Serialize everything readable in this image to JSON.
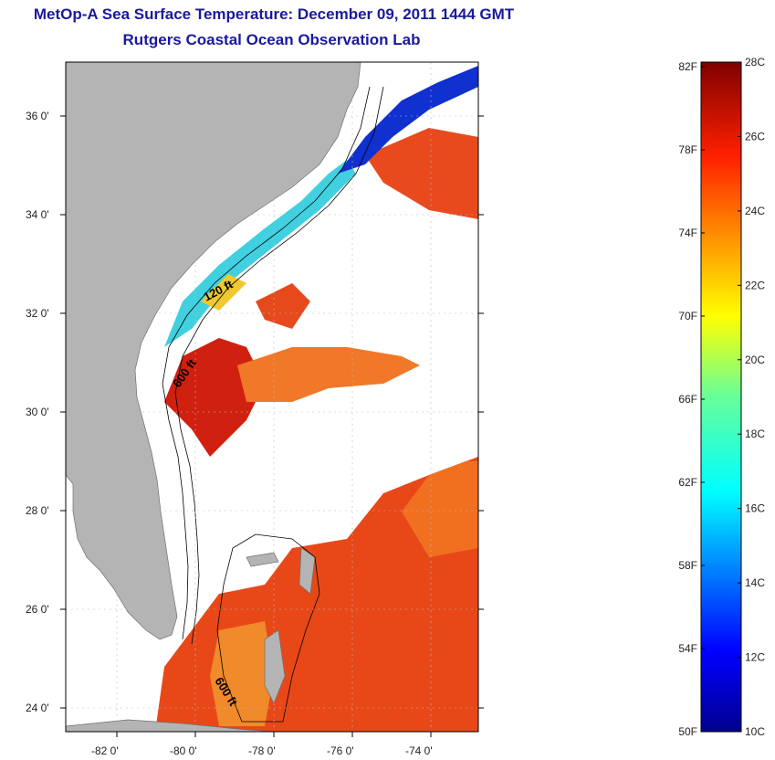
{
  "title": {
    "line1": "MetOp-A Sea Surface Temperature:  December 09, 2011 1444 GMT",
    "line2": "Rutgers Coastal Ocean Observation Lab"
  },
  "map": {
    "lat_labels": [
      "36 0'",
      "34 0'",
      "32 0'",
      "30 0'",
      "28 0'",
      "26 0'",
      "24 0'"
    ],
    "lon_labels": [
      "-82 0'",
      "-80 0'",
      "-78 0'",
      "-76 0'",
      "-74 0'"
    ],
    "contour_labels": [
      "120 ft",
      "600 ft",
      "600 ft"
    ],
    "colors": {
      "land": "#b4b4b4",
      "ocean_nodata": "#ffffff"
    }
  },
  "colorbar": {
    "fahrenheit_labels": [
      "82F",
      "78F",
      "74F",
      "70F",
      "66F",
      "62F",
      "58F",
      "54F",
      "50F"
    ],
    "celsius_labels": [
      "28C",
      "26C",
      "24C",
      "22C",
      "20C",
      "18C",
      "16C",
      "14C",
      "12C",
      "10C"
    ],
    "range_c": [
      10,
      28
    ],
    "range_f": [
      50,
      82
    ],
    "colormap": "jet"
  }
}
